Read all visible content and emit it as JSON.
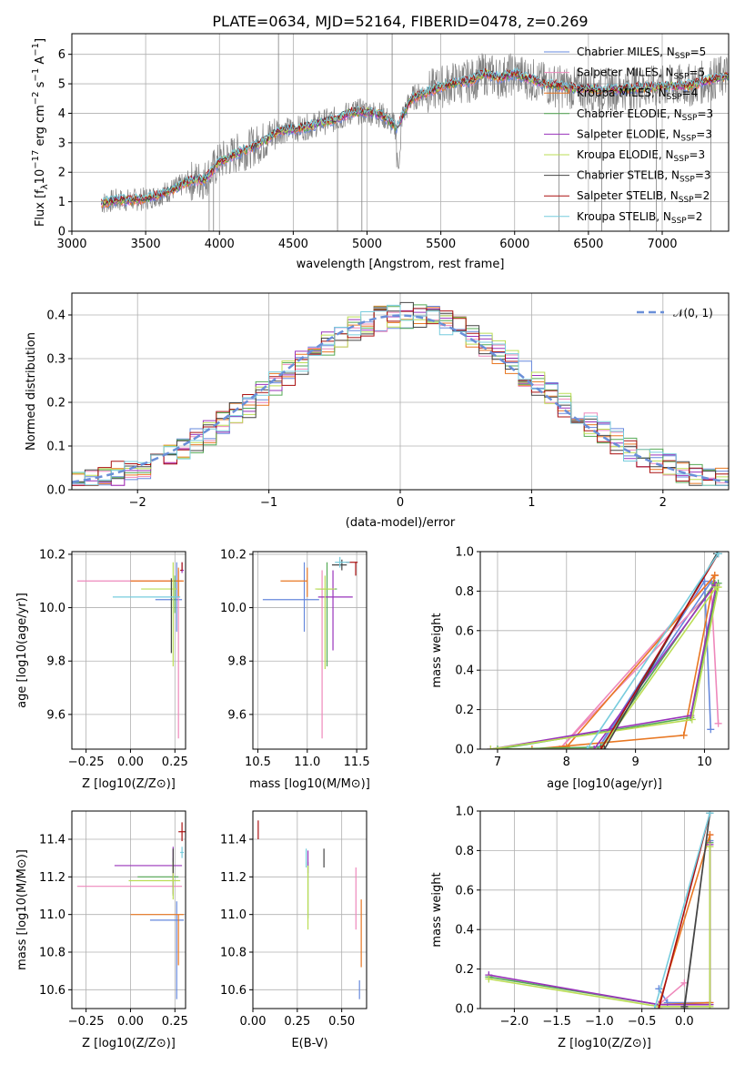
{
  "figure_title": "PLATE=0634, MJD=52164, FIBERID=0478, z=0.269",
  "series": [
    {
      "name": "Chabrier MILES, N$_{SSP}$=5",
      "label_main": "Chabrier MILES, N",
      "sub": "SSP",
      "label_end": "=5",
      "color": "#6688dd"
    },
    {
      "name": "Salpeter MILES, N$_{SSP}$=5",
      "label_main": "Salpeter MILES, N",
      "sub": "SSP",
      "label_end": "=5",
      "color": "#ee88bb"
    },
    {
      "name": "Kroupa MILES, N$_{SSP}$=4",
      "label_main": "Kroupa MILES, N",
      "sub": "SSP",
      "label_end": "=4",
      "color": "#e87722"
    },
    {
      "name": "Chabrier ELODIE, N$_{SSP}$=3",
      "label_main": "Chabrier ELODIE, N",
      "sub": "SSP",
      "label_end": "=3",
      "color": "#55aa55"
    },
    {
      "name": "Salpeter ELODIE, N$_{SSP}$=3",
      "label_main": "Salpeter ELODIE, N",
      "sub": "SSP",
      "label_end": "=3",
      "color": "#9933bb"
    },
    {
      "name": "Kroupa ELODIE, N$_{SSP}$=3",
      "label_main": "Kroupa ELODIE, N",
      "sub": "SSP",
      "label_end": "=3",
      "color": "#bbdd55"
    },
    {
      "name": "Chabrier STELIB, N$_{SSP}$=3",
      "label_main": "Chabrier STELIB, N",
      "sub": "SSP",
      "label_end": "=3",
      "color": "#444444"
    },
    {
      "name": "Salpeter STELIB, N$_{SSP}$=2",
      "label_main": "Salpeter STELIB, N",
      "sub": "SSP",
      "label_end": "=2",
      "color": "#aa1111"
    },
    {
      "name": "Kroupa STELIB, N$_{SSP}$=2",
      "label_main": "Kroupa STELIB, N",
      "sub": "SSP",
      "label_end": "=2",
      "color": "#77ccdd"
    }
  ],
  "chart_data": [
    {
      "id": "spectrum",
      "type": "line",
      "xlabel": "wavelength [Angstrom, rest frame]",
      "ylabel": "Flux [f_λ 10^-17 erg cm^-2 s^-1 A^-1]",
      "ylabel_parts": {
        "a": "Flux [f",
        "a_sub": "λ",
        "b": "10",
        "b_sup": "−17",
        "c": " erg cm",
        "c_sup": "−2",
        "d": " s",
        "d_sup": "−1",
        "e": " A",
        "e_sup": "−1",
        "f": "]"
      },
      "xlim": [
        3000,
        7450
      ],
      "ylim": [
        0,
        6.7
      ],
      "xticks": [
        3000,
        3500,
        4000,
        4500,
        5000,
        5500,
        6000,
        6500,
        7000
      ],
      "yticks": [
        0,
        1,
        2,
        3,
        4,
        5,
        6
      ],
      "continuum": {
        "x": [
          3200,
          3300,
          3400,
          3500,
          3600,
          3700,
          3800,
          3900,
          4000,
          4100,
          4200,
          4300,
          4400,
          4500,
          4600,
          4700,
          4800,
          4900,
          5000,
          5100,
          5200,
          5300,
          5400,
          5500,
          5600,
          5700,
          5800,
          5900,
          6000,
          6200,
          6400,
          6600,
          6800,
          7000,
          7200,
          7450
        ],
        "y": [
          0.95,
          1.05,
          1.05,
          1.1,
          1.25,
          1.45,
          1.7,
          1.75,
          2.35,
          2.6,
          2.8,
          3.05,
          3.4,
          3.45,
          3.55,
          3.7,
          3.8,
          4.05,
          4.05,
          3.95,
          3.5,
          4.5,
          4.7,
          4.9,
          5.05,
          5.1,
          5.35,
          5.2,
          5.35,
          5.0,
          4.85,
          4.8,
          4.85,
          4.9,
          4.95,
          5.3
        ]
      },
      "data_start": 3200,
      "data_end": 7450
    },
    {
      "id": "residuals",
      "type": "histogram",
      "xlabel": "(data-model)/error",
      "ylabel": "Normed distribution",
      "xlim": [
        -2.5,
        2.5
      ],
      "ylim": [
        0,
        0.45
      ],
      "xticks": [
        -2,
        -1,
        0,
        1,
        2
      ],
      "yticks": [
        0.0,
        0.1,
        0.2,
        0.3,
        0.4
      ],
      "reference_curve": "𝒩(0, 1)",
      "bin_width": 0.1
    },
    {
      "id": "age_vs_Z",
      "type": "scatter",
      "xlabel": "Z [log10(Z/Z⊙)]",
      "ylabel": "age  [log10(age/yr)]",
      "xlim": [
        -0.33,
        0.31
      ],
      "ylim": [
        9.47,
        10.21
      ],
      "xticks": [
        -0.25,
        0.0,
        0.25
      ],
      "yticks": [
        9.6,
        9.8,
        10.0,
        10.2
      ],
      "points": [
        {
          "x": 0.26,
          "y": 10.03,
          "xerr": [
            0.12,
            0.03
          ],
          "yerr": [
            0.12,
            0.14
          ]
        },
        {
          "x": 0.27,
          "y": 10.1,
          "xerr": [
            0.57,
            0.02
          ],
          "yerr": [
            0.59,
            0.04
          ]
        },
        {
          "x": 0.27,
          "y": 10.1,
          "xerr": [
            0.27,
            0.03
          ],
          "yerr": [
            0.06,
            0.05
          ]
        },
        {
          "x": 0.25,
          "y": 10.12,
          "xerr": [
            0.0,
            0.0
          ],
          "yerr": [
            0.14,
            0.0
          ]
        },
        {
          "x": 0.29,
          "y": 10.14,
          "xerr": [
            0.0,
            0.01
          ],
          "yerr": [
            0.01,
            0.03
          ]
        },
        {
          "x": 0.24,
          "y": 10.07,
          "xerr": [
            0.18,
            0.02
          ],
          "yerr": [
            0.29,
            0.1
          ]
        },
        {
          "x": 0.23,
          "y": 10.11,
          "xerr": [
            0.0,
            0.0
          ],
          "yerr": [
            0.28,
            0.0
          ]
        },
        {
          "x": 0.29,
          "y": 10.14,
          "xerr": [
            0.01,
            0.0
          ],
          "yerr": [
            0.0,
            0.03
          ]
        },
        {
          "x": 0.27,
          "y": 10.04,
          "xerr": [
            0.37,
            0.01
          ],
          "yerr": [
            0.0,
            0.0
          ]
        }
      ]
    },
    {
      "id": "age_vs_mass",
      "type": "scatter",
      "xlabel": "mass [log10(M/M⊙)]",
      "ylabel": "",
      "xlim": [
        10.45,
        11.6
      ],
      "ylim": [
        9.47,
        10.21
      ],
      "xticks": [
        10.5,
        11.0,
        11.5
      ],
      "yticks": [
        9.6,
        9.8,
        10.0,
        10.2
      ],
      "points": [
        {
          "x": 10.97,
          "y": 10.03,
          "xerr": [
            0.42,
            0.15
          ],
          "yerr": [
            0.12,
            0.14
          ]
        },
        {
          "x": 11.15,
          "y": 10.1,
          "xerr": [
            0.0,
            0.0
          ],
          "yerr": [
            0.59,
            0.04
          ]
        },
        {
          "x": 11.0,
          "y": 10.1,
          "xerr": [
            0.27,
            0.0
          ],
          "yerr": [
            0.06,
            0.05
          ]
        },
        {
          "x": 11.2,
          "y": 10.07,
          "xerr": [
            0.1,
            0.1
          ],
          "yerr": [
            0.29,
            0.1
          ]
        },
        {
          "x": 11.26,
          "y": 10.04,
          "xerr": [
            0.15,
            0.2
          ],
          "yerr": [
            0.2,
            0.1
          ]
        },
        {
          "x": 11.18,
          "y": 10.07,
          "xerr": [
            0.1,
            0.1
          ],
          "yerr": [
            0.3,
            0.05
          ]
        },
        {
          "x": 11.35,
          "y": 10.16,
          "xerr": [
            0.1,
            0.05
          ],
          "yerr": [
            0.02,
            0.02
          ]
        },
        {
          "x": 11.49,
          "y": 10.17,
          "xerr": [
            0.1,
            0.02
          ],
          "yerr": [
            0.05,
            0.0
          ]
        },
        {
          "x": 11.33,
          "y": 10.17,
          "xerr": [
            0.05,
            0.1
          ],
          "yerr": [
            0.02,
            0.02
          ]
        }
      ]
    },
    {
      "id": "weight_vs_age",
      "type": "line",
      "xlabel": "age  [log10(age/yr)]",
      "ylabel": "mass weight",
      "xlim": [
        6.75,
        10.35
      ],
      "ylim": [
        0,
        1.0
      ],
      "xticks": [
        7,
        8,
        9,
        10
      ],
      "yticks": [
        0.0,
        0.2,
        0.4,
        0.6,
        0.8,
        1.0
      ],
      "lines": [
        {
          "x": [
            10.09,
            10.0,
            8.45,
            10.1
          ],
          "y": [
            0.1,
            0.85,
            0.0,
            0.85
          ]
        },
        {
          "x": [
            10.2,
            10.1,
            7.9,
            10.15
          ],
          "y": [
            0.13,
            0.8,
            0.0,
            0.88
          ]
        },
        {
          "x": [
            10.15,
            9.7,
            7.5,
            8.0,
            10.15
          ],
          "y": [
            0.88,
            0.07,
            0.0,
            0.01,
            0.88
          ]
        },
        {
          "x": [
            10.2,
            9.8,
            7.0,
            8.5,
            10.15
          ],
          "y": [
            0.84,
            0.16,
            0.0,
            0.01,
            0.84
          ]
        },
        {
          "x": [
            10.17,
            9.8,
            6.9,
            8.4,
            10.15
          ],
          "y": [
            0.83,
            0.17,
            0.0,
            0.0,
            0.83
          ]
        },
        {
          "x": [
            10.2,
            9.82,
            6.9,
            8.5,
            10.17
          ],
          "y": [
            0.82,
            0.15,
            0.0,
            0.0,
            0.82
          ]
        },
        {
          "x": [
            10.18,
            8.55,
            10.18
          ],
          "y": [
            0.99,
            0.0,
            0.99
          ]
        },
        {
          "x": [
            10.2,
            8.5,
            10.2
          ],
          "y": [
            0.99,
            0.0,
            0.99
          ]
        },
        {
          "x": [
            10.2,
            8.3,
            10.2
          ],
          "y": [
            0.99,
            0.0,
            0.99
          ]
        }
      ]
    },
    {
      "id": "mass_vs_Z",
      "type": "scatter",
      "xlabel": "Z [log10(Z/Z⊙)]",
      "ylabel": "mass [log10(M/M⊙)]",
      "xlim": [
        -0.33,
        0.31
      ],
      "ylim": [
        10.5,
        11.55
      ],
      "xticks": [
        -0.25,
        0.0,
        0.25
      ],
      "yticks": [
        10.6,
        10.8,
        11.0,
        11.2,
        11.4
      ],
      "points": [
        {
          "x": 0.26,
          "y": 10.97,
          "xerr": [
            0.15,
            0.04
          ],
          "yerr": [
            0.42,
            0.1
          ]
        },
        {
          "x": 0.26,
          "y": 11.15,
          "xerr": [
            0.56,
            0.03
          ],
          "yerr": [
            0.0,
            0.0
          ]
        },
        {
          "x": 0.27,
          "y": 11.0,
          "xerr": [
            0.27,
            0.03
          ],
          "yerr": [
            0.27,
            0.0
          ]
        },
        {
          "x": 0.24,
          "y": 11.2,
          "xerr": [
            0.2,
            0.03
          ],
          "yerr": [
            0.1,
            0.1
          ]
        },
        {
          "x": 0.24,
          "y": 11.26,
          "xerr": [
            0.33,
            0.05
          ],
          "yerr": [
            0.15,
            0.1
          ]
        },
        {
          "x": 0.24,
          "y": 11.18,
          "xerr": [
            0.25,
            0.04
          ],
          "yerr": [
            0.1,
            0.1
          ]
        },
        {
          "x": 0.24,
          "y": 11.32,
          "xerr": [
            0.0,
            0.0
          ],
          "yerr": [
            0.1,
            0.03
          ]
        },
        {
          "x": 0.29,
          "y": 11.44,
          "xerr": [
            0.02,
            0.02
          ],
          "yerr": [
            0.05,
            0.05
          ]
        },
        {
          "x": 0.29,
          "y": 11.33,
          "xerr": [
            0.01,
            0.01
          ],
          "yerr": [
            0.03,
            0.03
          ]
        }
      ]
    },
    {
      "id": "mass_vs_ebv",
      "type": "scatter",
      "xlabel": "E(B-V)",
      "ylabel": "",
      "xlim": [
        0.0,
        0.64
      ],
      "ylim": [
        10.5,
        11.55
      ],
      "xticks": [
        0.0,
        0.25,
        0.5
      ],
      "yticks": [
        10.6,
        10.8,
        11.0,
        11.2,
        11.4
      ],
      "points": [
        {
          "x": 0.6,
          "y": 10.6,
          "xerr": [
            0.0,
            0.0
          ],
          "yerr": [
            0.05,
            0.05
          ]
        },
        {
          "x": 0.58,
          "y": 11.1,
          "xerr": [
            0.0,
            0.0
          ],
          "yerr": [
            0.18,
            0.15
          ]
        },
        {
          "x": 0.61,
          "y": 10.9,
          "xerr": [
            0.0,
            0.0
          ],
          "yerr": [
            0.18,
            0.18
          ]
        },
        {
          "x": 0.31,
          "y": 11.1,
          "xerr": [
            0.0,
            0.0
          ],
          "yerr": [
            0.12,
            0.18
          ]
        },
        {
          "x": 0.31,
          "y": 11.28,
          "xerr": [
            0.0,
            0.0
          ],
          "yerr": [
            0.06,
            0.06
          ]
        },
        {
          "x": 0.31,
          "y": 11.12,
          "xerr": [
            0.0,
            0.0
          ],
          "yerr": [
            0.2,
            0.14
          ]
        },
        {
          "x": 0.4,
          "y": 11.3,
          "xerr": [
            0.0,
            0.0
          ],
          "yerr": [
            0.05,
            0.05
          ]
        },
        {
          "x": 0.03,
          "y": 11.45,
          "xerr": [
            0.0,
            0.0
          ],
          "yerr": [
            0.05,
            0.05
          ]
        },
        {
          "x": 0.3,
          "y": 11.3,
          "xerr": [
            0.0,
            0.0
          ],
          "yerr": [
            0.05,
            0.05
          ]
        }
      ]
    },
    {
      "id": "weight_vs_Z",
      "type": "line",
      "xlabel": "Z [log10(Z/Z⊙)]",
      "ylabel": "mass weight",
      "xlim": [
        -2.4,
        0.52
      ],
      "ylim": [
        0,
        1.0
      ],
      "xticks": [
        -2.0,
        -1.5,
        -1.0,
        -0.5,
        0.0
      ],
      "yticks": [
        0.0,
        0.2,
        0.4,
        0.6,
        0.8,
        1.0
      ],
      "lines": [
        {
          "x": [
            -0.3,
            -0.2,
            0.3,
            0.3
          ],
          "y": [
            0.1,
            0.03,
            0.03,
            0.85
          ]
        },
        {
          "x": [
            0.0,
            -0.3,
            0.3,
            0.3
          ],
          "y": [
            0.13,
            0.02,
            0.03,
            0.88
          ]
        },
        {
          "x": [
            -0.3,
            0.3,
            0.3,
            -0.3
          ],
          "y": [
            0.02,
            0.03,
            0.88,
            0.02
          ]
        },
        {
          "x": [
            -2.3,
            -0.3,
            0.3,
            0.3
          ],
          "y": [
            0.16,
            0.02,
            0.02,
            0.84
          ]
        },
        {
          "x": [
            -2.3,
            -0.3,
            0.3,
            0.3
          ],
          "y": [
            0.17,
            0.02,
            0.02,
            0.83
          ]
        },
        {
          "x": [
            -2.3,
            -0.3,
            0.3,
            0.3
          ],
          "y": [
            0.15,
            0.01,
            0.01,
            0.82
          ]
        },
        {
          "x": [
            0.0,
            0.0,
            0.3,
            0.0
          ],
          "y": [
            0.0,
            0.01,
            0.99,
            0.0
          ]
        },
        {
          "x": [
            0.3,
            -0.3,
            0.3
          ],
          "y": [
            0.99,
            0.0,
            0.99
          ]
        },
        {
          "x": [
            0.3,
            -0.35,
            0.3
          ],
          "y": [
            0.99,
            0.0,
            0.99
          ]
        }
      ]
    }
  ]
}
